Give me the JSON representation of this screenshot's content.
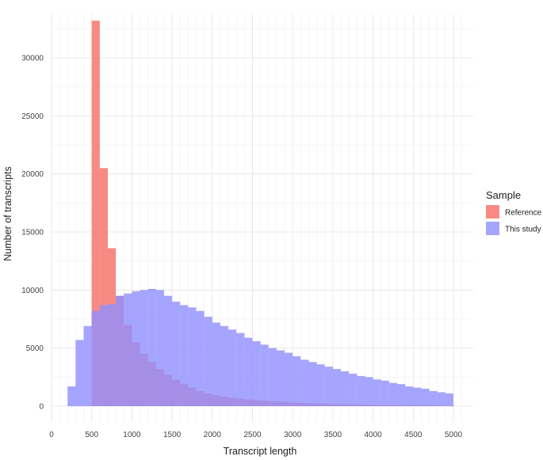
{
  "chart_data": {
    "type": "bar",
    "subtype": "overlapping-histogram",
    "xlabel": "Transcript length",
    "ylabel": "Number of transcripts",
    "xlim": [
      0,
      5100
    ],
    "ylim": [
      0,
      34000
    ],
    "x_ticks": [
      0,
      500,
      1000,
      1500,
      2000,
      2500,
      3000,
      3500,
      4000,
      4500,
      5000
    ],
    "y_ticks": [
      0,
      5000,
      10000,
      15000,
      20000,
      25000,
      30000
    ],
    "bin_width": 100,
    "grid": true,
    "legend": {
      "title": "Sample",
      "position": "right"
    },
    "series": [
      {
        "name": "Reference",
        "color": "#F8766D",
        "opacity": 0.85,
        "bin_starts": [
          500,
          600,
          700,
          800,
          900,
          1000,
          1100,
          1200,
          1300,
          1400,
          1500,
          1600,
          1700,
          1800,
          1900,
          2000,
          2100,
          2200,
          2300,
          2400,
          2500,
          2600,
          2700,
          2800,
          2900,
          3000,
          3100,
          3200,
          3300,
          3400,
          3500,
          3600,
          3700,
          3800,
          3900,
          4000,
          4100,
          4200,
          4300,
          4400,
          4500,
          4600,
          4700,
          4800,
          4900
        ],
        "values": [
          33200,
          20500,
          13600,
          9500,
          7000,
          5500,
          4500,
          3800,
          3200,
          2700,
          2300,
          1900,
          1600,
          1300,
          1100,
          950,
          820,
          720,
          650,
          580,
          520,
          470,
          420,
          380,
          340,
          300,
          270,
          240,
          220,
          200,
          180,
          160,
          145,
          130,
          120,
          110,
          100,
          90,
          80,
          75,
          70,
          65,
          60,
          55,
          50
        ]
      },
      {
        "name": "This study",
        "color": "#8F8FFF",
        "opacity": 0.8,
        "bin_starts": [
          200,
          300,
          400,
          500,
          600,
          700,
          800,
          900,
          1000,
          1100,
          1200,
          1300,
          1400,
          1500,
          1600,
          1700,
          1800,
          1900,
          2000,
          2100,
          2200,
          2300,
          2400,
          2500,
          2600,
          2700,
          2800,
          2900,
          3000,
          3100,
          3200,
          3300,
          3400,
          3500,
          3600,
          3700,
          3800,
          3900,
          4000,
          4100,
          4200,
          4300,
          4400,
          4500,
          4600,
          4700,
          4800,
          4900
        ],
        "values": [
          1700,
          5700,
          6900,
          8200,
          8700,
          8800,
          9500,
          9700,
          9900,
          10000,
          10100,
          10000,
          9500,
          9000,
          8700,
          8500,
          8200,
          7700,
          7200,
          6900,
          6600,
          6300,
          5900,
          5600,
          5300,
          5000,
          4800,
          4600,
          4300,
          4000,
          3800,
          3600,
          3400,
          3200,
          3000,
          2800,
          2600,
          2500,
          2300,
          2200,
          2000,
          1900,
          1700,
          1600,
          1500,
          1300,
          1200,
          1100
        ]
      }
    ]
  }
}
